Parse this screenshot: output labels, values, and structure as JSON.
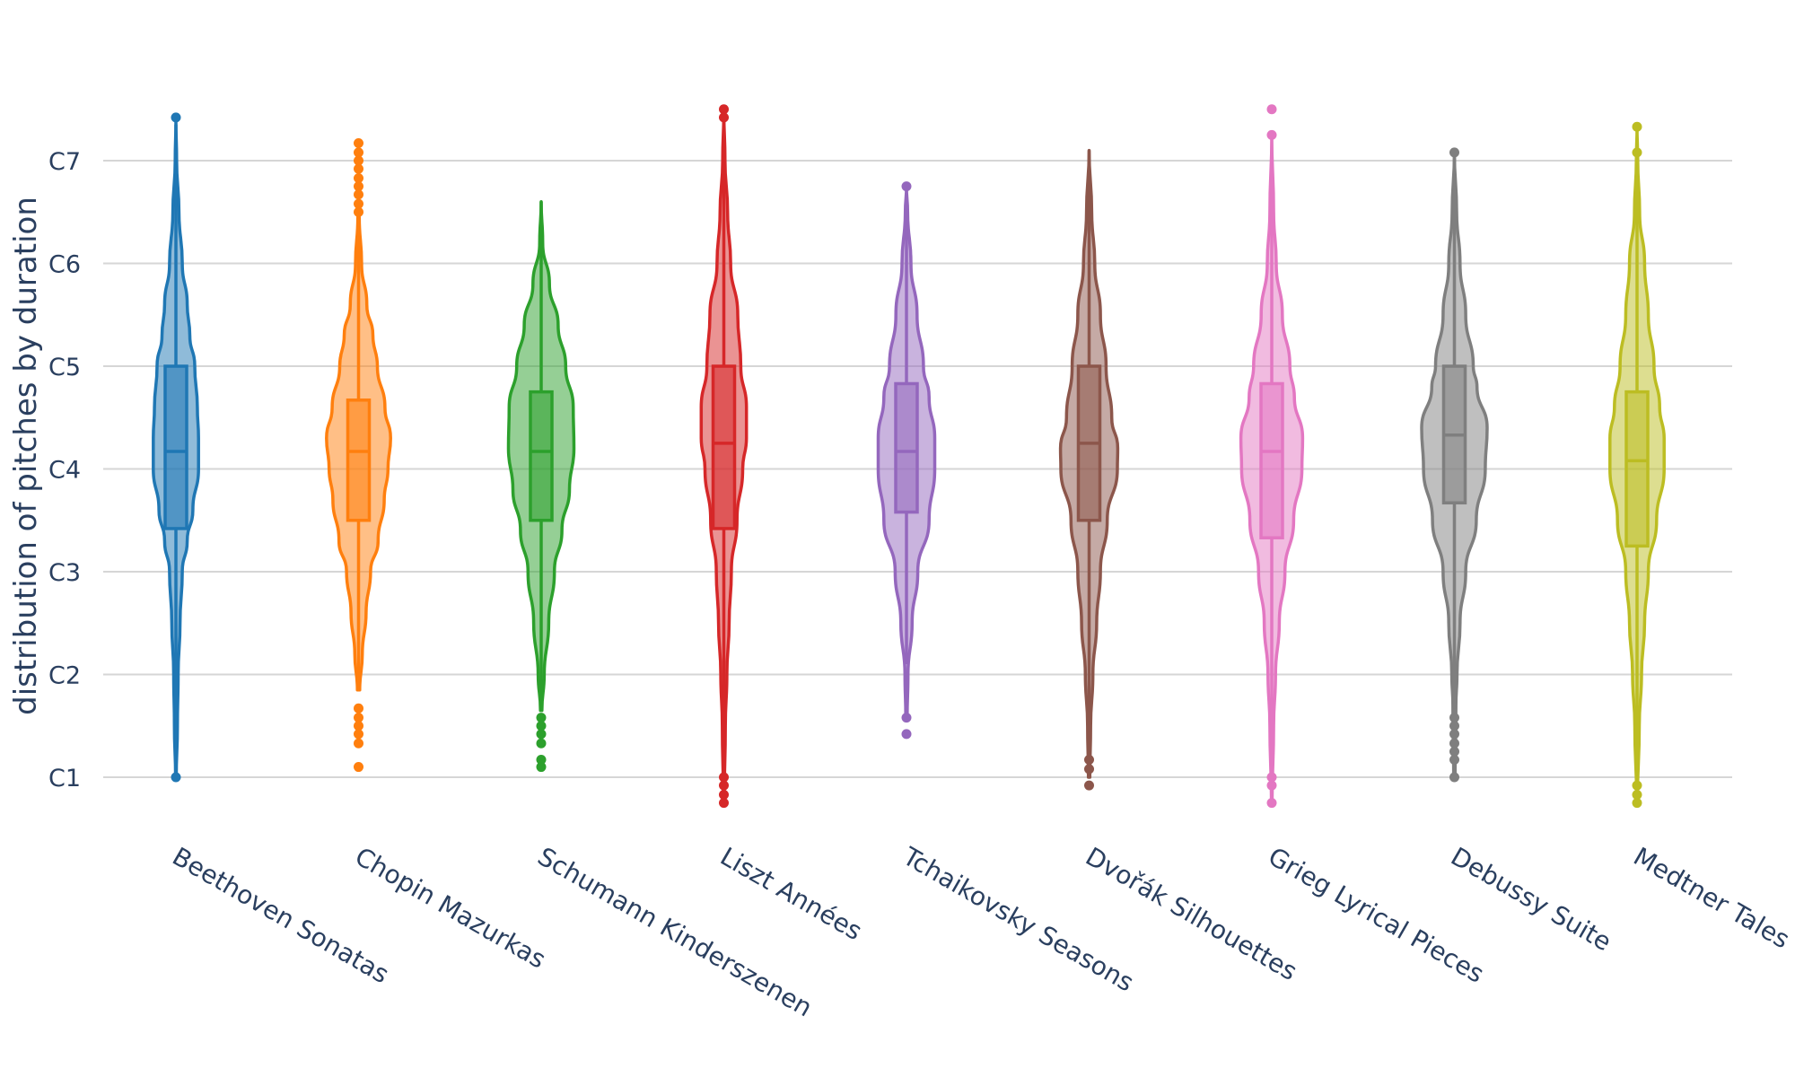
{
  "chart_data": {
    "type": "violin",
    "ylabel": "distribution of pitches by duration",
    "xlabel": "",
    "y_ticks": [
      {
        "label": "C1",
        "value": 1
      },
      {
        "label": "C2",
        "value": 2
      },
      {
        "label": "C3",
        "value": 3
      },
      {
        "label": "C4",
        "value": 4
      },
      {
        "label": "C5",
        "value": 5
      },
      {
        "label": "C6",
        "value": 6
      },
      {
        "label": "C7",
        "value": 7
      }
    ],
    "ylim": [
      0.6,
      7.75
    ],
    "grid": true,
    "legend": "none",
    "series": [
      {
        "name": "Beethoven Sonatas",
        "color": "#1f77b4",
        "min": 1.0,
        "q1": 3.42,
        "median": 4.17,
        "q3": 5.0,
        "whisker_high": 7.35,
        "outliers": [
          1.0,
          7.42
        ],
        "density": [
          [
            1.0,
            0.01
          ],
          [
            1.5,
            0.04
          ],
          [
            2.0,
            0.06
          ],
          [
            2.5,
            0.11
          ],
          [
            3.0,
            0.17
          ],
          [
            3.3,
            0.3
          ],
          [
            3.6,
            0.45
          ],
          [
            4.0,
            0.6
          ],
          [
            4.3,
            0.6
          ],
          [
            4.6,
            0.57
          ],
          [
            5.0,
            0.5
          ],
          [
            5.3,
            0.37
          ],
          [
            5.6,
            0.3
          ],
          [
            6.0,
            0.17
          ],
          [
            6.5,
            0.08
          ],
          [
            7.0,
            0.02
          ],
          [
            7.4,
            0.0
          ]
        ]
      },
      {
        "name": "Chopin Mazurkas",
        "color": "#ff7f0e",
        "min": 1.85,
        "q1": 3.5,
        "median": 4.17,
        "q3": 4.67,
        "whisker_high": 6.45,
        "outliers": [
          1.1,
          1.33,
          1.42,
          1.5,
          1.58,
          1.67,
          6.5,
          6.58,
          6.67,
          6.75,
          6.83,
          6.92,
          7.0,
          7.08,
          7.17
        ],
        "density": [
          [
            1.85,
            0.03
          ],
          [
            2.2,
            0.1
          ],
          [
            2.6,
            0.2
          ],
          [
            3.0,
            0.32
          ],
          [
            3.3,
            0.52
          ],
          [
            3.7,
            0.68
          ],
          [
            4.0,
            0.78
          ],
          [
            4.3,
            0.85
          ],
          [
            4.6,
            0.7
          ],
          [
            5.0,
            0.5
          ],
          [
            5.3,
            0.38
          ],
          [
            5.6,
            0.22
          ],
          [
            6.0,
            0.08
          ],
          [
            6.45,
            0.02
          ]
        ]
      },
      {
        "name": "Schumann Kinderszenen",
        "color": "#2ca02c",
        "min": 1.65,
        "q1": 3.5,
        "median": 4.17,
        "q3": 4.75,
        "whisker_high": 6.6,
        "outliers": [
          1.1,
          1.17,
          1.33,
          1.42,
          1.5,
          1.58
        ],
        "density": [
          [
            1.65,
            0.02
          ],
          [
            2.0,
            0.08
          ],
          [
            2.5,
            0.2
          ],
          [
            3.0,
            0.35
          ],
          [
            3.4,
            0.55
          ],
          [
            3.8,
            0.75
          ],
          [
            4.2,
            0.87
          ],
          [
            4.6,
            0.85
          ],
          [
            5.0,
            0.65
          ],
          [
            5.4,
            0.45
          ],
          [
            5.8,
            0.22
          ],
          [
            6.2,
            0.04
          ],
          [
            6.6,
            0.0
          ]
        ]
      },
      {
        "name": "Liszt Années",
        "color": "#d62728",
        "min": 1.0,
        "q1": 3.42,
        "median": 4.25,
        "q3": 5.0,
        "whisker_high": 7.4,
        "outliers": [
          0.75,
          0.83,
          0.92,
          1.0,
          7.42,
          7.5
        ],
        "density": [
          [
            0.75,
            0.01
          ],
          [
            1.5,
            0.04
          ],
          [
            2.0,
            0.08
          ],
          [
            2.5,
            0.14
          ],
          [
            3.0,
            0.2
          ],
          [
            3.5,
            0.35
          ],
          [
            4.0,
            0.5
          ],
          [
            4.3,
            0.6
          ],
          [
            4.6,
            0.6
          ],
          [
            5.0,
            0.45
          ],
          [
            5.5,
            0.37
          ],
          [
            6.0,
            0.18
          ],
          [
            6.5,
            0.1
          ],
          [
            7.0,
            0.03
          ],
          [
            7.5,
            0.0
          ]
        ]
      },
      {
        "name": "Tchaikovsky Seasons",
        "color": "#9467bd",
        "min": 2.1,
        "q1": 3.58,
        "median": 4.17,
        "q3": 4.83,
        "whisker_high": 6.6,
        "outliers": [
          1.42,
          1.58,
          6.75
        ],
        "density": [
          [
            1.58,
            0.02
          ],
          [
            2.0,
            0.04
          ],
          [
            2.5,
            0.15
          ],
          [
            3.0,
            0.3
          ],
          [
            3.5,
            0.6
          ],
          [
            4.0,
            0.75
          ],
          [
            4.3,
            0.75
          ],
          [
            4.7,
            0.6
          ],
          [
            5.0,
            0.45
          ],
          [
            5.5,
            0.28
          ],
          [
            6.0,
            0.12
          ],
          [
            6.5,
            0.03
          ],
          [
            6.75,
            0.0
          ]
        ]
      },
      {
        "name": "Dvořák Silhouettes",
        "color": "#8c564b",
        "min": 1.25,
        "q1": 3.5,
        "median": 4.25,
        "q3": 5.0,
        "whisker_high": 7.1,
        "outliers": [
          0.92,
          1.08,
          1.17
        ],
        "density": [
          [
            1.0,
            0.02
          ],
          [
            1.5,
            0.04
          ],
          [
            2.0,
            0.1
          ],
          [
            2.5,
            0.2
          ],
          [
            3.0,
            0.3
          ],
          [
            3.5,
            0.48
          ],
          [
            4.0,
            0.75
          ],
          [
            4.2,
            0.76
          ],
          [
            4.5,
            0.6
          ],
          [
            5.0,
            0.45
          ],
          [
            5.5,
            0.3
          ],
          [
            6.0,
            0.15
          ],
          [
            6.5,
            0.07
          ],
          [
            7.1,
            0.0
          ]
        ]
      },
      {
        "name": "Grieg Lyrical Pieces",
        "color": "#e377c2",
        "min": 1.1,
        "q1": 3.33,
        "median": 4.17,
        "q3": 4.83,
        "whisker_high": 7.1,
        "outliers": [
          0.75,
          0.92,
          1.0,
          7.25,
          7.5
        ],
        "density": [
          [
            0.75,
            0.01
          ],
          [
            1.5,
            0.05
          ],
          [
            2.0,
            0.1
          ],
          [
            2.5,
            0.2
          ],
          [
            3.0,
            0.35
          ],
          [
            3.5,
            0.58
          ],
          [
            4.0,
            0.8
          ],
          [
            4.3,
            0.82
          ],
          [
            4.7,
            0.6
          ],
          [
            5.0,
            0.48
          ],
          [
            5.5,
            0.28
          ],
          [
            6.0,
            0.12
          ],
          [
            6.5,
            0.05
          ],
          [
            7.25,
            0.0
          ]
        ]
      },
      {
        "name": "Debussy Suite",
        "color": "#7f7f7f",
        "min": 1.67,
        "q1": 3.67,
        "median": 4.33,
        "q3": 5.0,
        "whisker_high": 7.08,
        "outliers": [
          1.0,
          1.17,
          1.25,
          1.33,
          1.42,
          1.5,
          1.58,
          7.08
        ],
        "density": [
          [
            1.0,
            0.02
          ],
          [
            1.7,
            0.04
          ],
          [
            2.0,
            0.07
          ],
          [
            2.5,
            0.15
          ],
          [
            3.0,
            0.3
          ],
          [
            3.5,
            0.58
          ],
          [
            4.0,
            0.82
          ],
          [
            4.4,
            0.87
          ],
          [
            4.8,
            0.6
          ],
          [
            5.0,
            0.5
          ],
          [
            5.5,
            0.3
          ],
          [
            6.0,
            0.15
          ],
          [
            6.5,
            0.06
          ],
          [
            7.08,
            0.0
          ]
        ]
      },
      {
        "name": "Medtner Tales",
        "color": "#bcbd22",
        "min": 1.0,
        "q1": 3.25,
        "median": 4.08,
        "q3": 4.75,
        "whisker_high": 6.9,
        "outliers": [
          0.75,
          0.83,
          0.92,
          7.08,
          7.33
        ],
        "density": [
          [
            0.75,
            0.01
          ],
          [
            1.5,
            0.06
          ],
          [
            2.0,
            0.12
          ],
          [
            2.5,
            0.2
          ],
          [
            3.0,
            0.3
          ],
          [
            3.5,
            0.52
          ],
          [
            4.0,
            0.72
          ],
          [
            4.3,
            0.72
          ],
          [
            4.6,
            0.6
          ],
          [
            5.0,
            0.45
          ],
          [
            5.5,
            0.3
          ],
          [
            6.0,
            0.2
          ],
          [
            6.5,
            0.07
          ],
          [
            7.0,
            0.02
          ],
          [
            7.33,
            0.0
          ]
        ]
      }
    ]
  }
}
